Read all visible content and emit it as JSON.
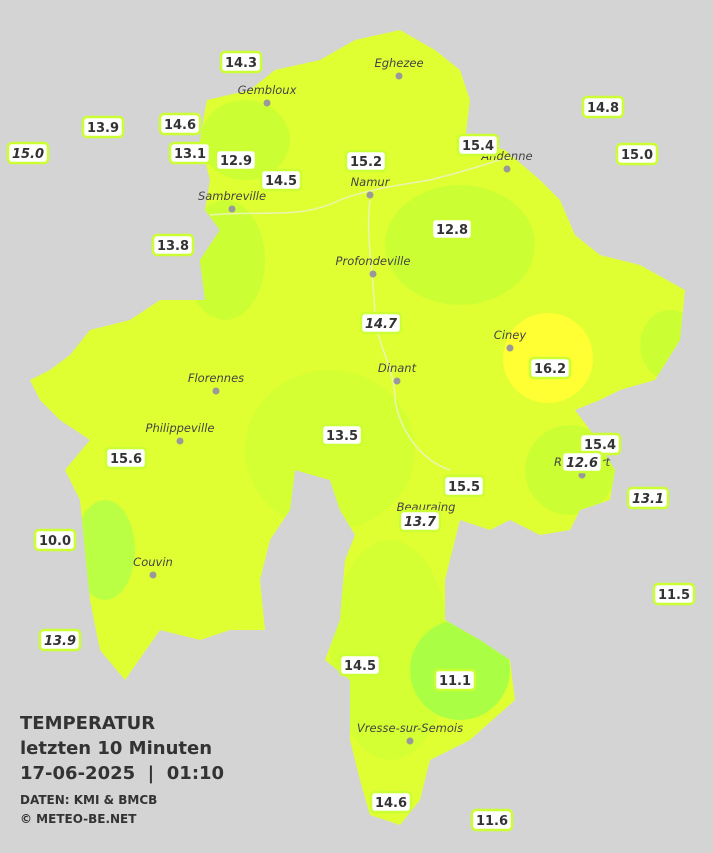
{
  "title": [
    "TEMPERATUR",
    "letzten 10 Minuten",
    "17-06-2025  |  01:10"
  ],
  "credits": [
    "DATEN: KMI & BMCB",
    "© METEO-BE.NET"
  ],
  "cities": [
    "Eghezee",
    "Gembloux",
    "Andenne",
    "Namur",
    "Sambreville",
    "Profondeville",
    "Ciney",
    "Dinant",
    "Florennes",
    "Philippeville",
    "Rochefort",
    "Beauraing",
    "Couvin",
    "Vresse-sur-Semois"
  ],
  "stations": [
    {
      "label": "14.3"
    },
    {
      "label": "13.9"
    },
    {
      "label": "14.6"
    },
    {
      "label": "15.0",
      "italic": true
    },
    {
      "label": "13.1"
    },
    {
      "label": "12.9"
    },
    {
      "label": "14.5"
    },
    {
      "label": "15.2"
    },
    {
      "label": "15.4"
    },
    {
      "label": "14.8"
    },
    {
      "label": "15.0"
    },
    {
      "label": "13.8"
    },
    {
      "label": "12.8"
    },
    {
      "label": "14.7",
      "italic": true
    },
    {
      "label": "16.2"
    },
    {
      "label": "13.5"
    },
    {
      "label": "15.6"
    },
    {
      "label": "15.4"
    },
    {
      "label": "12.6",
      "italic": true
    },
    {
      "label": "15.5"
    },
    {
      "label": "13.1",
      "italic": true
    },
    {
      "label": "13.7",
      "italic": true
    },
    {
      "label": "10.0"
    },
    {
      "label": "11.5"
    },
    {
      "label": "13.9",
      "italic": true
    },
    {
      "label": "14.5"
    },
    {
      "label": "11.1"
    },
    {
      "label": "14.6"
    },
    {
      "label": "11.6"
    }
  ]
}
